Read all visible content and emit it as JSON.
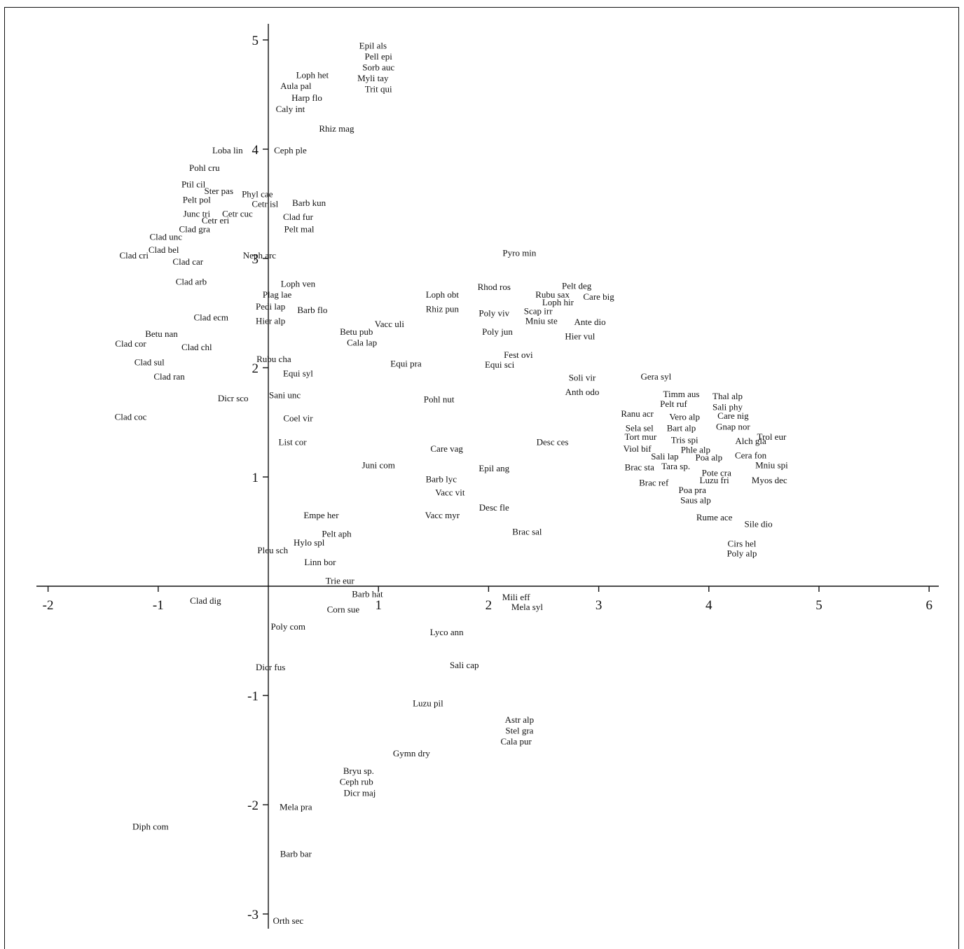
{
  "chart_data": {
    "type": "scatter",
    "title": "",
    "xlabel": "",
    "ylabel": "",
    "xlim": [
      -2.1,
      6.1
    ],
    "ylim": [
      -3.1,
      5.1
    ],
    "grid": false,
    "x_ticks": [
      "-2",
      "-1",
      "1",
      "2",
      "3",
      "4",
      "5",
      "6"
    ],
    "y_ticks": [
      "5",
      "4",
      "3",
      "2",
      "1",
      "-1",
      "-2",
      "-3"
    ],
    "points": [
      {
        "label": "Epil als",
        "x": 0.95,
        "y": 4.95
      },
      {
        "label": "Pell epi",
        "x": 1.0,
        "y": 4.85
      },
      {
        "label": "Sorb auc",
        "x": 1.0,
        "y": 4.75
      },
      {
        "label": "Myli tay",
        "x": 0.95,
        "y": 4.65
      },
      {
        "label": "Trit qui",
        "x": 1.0,
        "y": 4.55
      },
      {
        "label": "Loph het",
        "x": 0.4,
        "y": 4.68
      },
      {
        "label": "Aula pal",
        "x": 0.25,
        "y": 4.58
      },
      {
        "label": "Harp flo",
        "x": 0.35,
        "y": 4.47
      },
      {
        "label": "Caly int",
        "x": 0.2,
        "y": 4.37
      },
      {
        "label": "Rhiz mag",
        "x": 0.62,
        "y": 4.19
      },
      {
        "label": "Loba lin",
        "x": -0.37,
        "y": 3.99
      },
      {
        "label": "Ceph ple",
        "x": 0.2,
        "y": 3.99
      },
      {
        "label": "Pohl cru",
        "x": -0.58,
        "y": 3.83
      },
      {
        "label": "Ptil cil",
        "x": -0.68,
        "y": 3.68
      },
      {
        "label": "Ster pas",
        "x": -0.45,
        "y": 3.62
      },
      {
        "label": "Phyl cae",
        "x": -0.1,
        "y": 3.59
      },
      {
        "label": "Pelt pol",
        "x": -0.65,
        "y": 3.54
      },
      {
        "label": "Cetr isl",
        "x": -0.03,
        "y": 3.5
      },
      {
        "label": "Barb kun",
        "x": 0.37,
        "y": 3.51
      },
      {
        "label": "Junc tri",
        "x": -0.65,
        "y": 3.41
      },
      {
        "label": "Cetr cuc",
        "x": -0.28,
        "y": 3.41
      },
      {
        "label": "Cetr eri",
        "x": -0.48,
        "y": 3.35
      },
      {
        "label": "Clad fur",
        "x": 0.27,
        "y": 3.38
      },
      {
        "label": "Clad gra",
        "x": -0.67,
        "y": 3.27
      },
      {
        "label": "Pelt mal",
        "x": 0.28,
        "y": 3.27
      },
      {
        "label": "Clad unc",
        "x": -0.93,
        "y": 3.2
      },
      {
        "label": "Clad bel",
        "x": -0.95,
        "y": 3.08
      },
      {
        "label": "Clad cri",
        "x": -1.22,
        "y": 3.03
      },
      {
        "label": "Neph arc",
        "x": -0.08,
        "y": 3.03
      },
      {
        "label": "Clad car",
        "x": -0.73,
        "y": 2.97
      },
      {
        "label": "Pyro min",
        "x": 2.28,
        "y": 3.05
      },
      {
        "label": "Clad arb",
        "x": -0.7,
        "y": 2.79
      },
      {
        "label": "Loph ven",
        "x": 0.27,
        "y": 2.77
      },
      {
        "label": "Rhod ros",
        "x": 2.05,
        "y": 2.74
      },
      {
        "label": "Pelt deg",
        "x": 2.8,
        "y": 2.75
      },
      {
        "label": "Plag lae",
        "x": 0.08,
        "y": 2.67
      },
      {
        "label": "Loph obt",
        "x": 1.58,
        "y": 2.67
      },
      {
        "label": "Rubu sax",
        "x": 2.58,
        "y": 2.67
      },
      {
        "label": "Care big",
        "x": 3.0,
        "y": 2.65
      },
      {
        "label": "Loph hir",
        "x": 2.63,
        "y": 2.6
      },
      {
        "label": "Pedi lap",
        "x": 0.02,
        "y": 2.56
      },
      {
        "label": "Rhiz pun",
        "x": 1.58,
        "y": 2.54
      },
      {
        "label": "Barb flo",
        "x": 0.4,
        "y": 2.53
      },
      {
        "label": "Scap irr",
        "x": 2.45,
        "y": 2.52
      },
      {
        "label": "Poly viv",
        "x": 2.05,
        "y": 2.5
      },
      {
        "label": "Clad ecm",
        "x": -0.52,
        "y": 2.46
      },
      {
        "label": "Hier alp",
        "x": 0.02,
        "y": 2.43
      },
      {
        "label": "Mniu ste",
        "x": 2.48,
        "y": 2.43
      },
      {
        "label": "Ante dio",
        "x": 2.92,
        "y": 2.42
      },
      {
        "label": "Vacc uli",
        "x": 1.1,
        "y": 2.4
      },
      {
        "label": "Betu pub",
        "x": 0.8,
        "y": 2.33
      },
      {
        "label": "Poly jun",
        "x": 2.08,
        "y": 2.33
      },
      {
        "label": "Betu nan",
        "x": -0.97,
        "y": 2.31
      },
      {
        "label": "Hier vul",
        "x": 2.83,
        "y": 2.29
      },
      {
        "label": "Cala lap",
        "x": 0.85,
        "y": 2.23
      },
      {
        "label": "Clad cor",
        "x": -1.25,
        "y": 2.22
      },
      {
        "label": "Clad chl",
        "x": -0.65,
        "y": 2.19
      },
      {
        "label": "Fest ovi",
        "x": 2.27,
        "y": 2.12
      },
      {
        "label": "Rubu cha",
        "x": 0.05,
        "y": 2.08
      },
      {
        "label": "Equi pra",
        "x": 1.25,
        "y": 2.04
      },
      {
        "label": "Equi sci",
        "x": 2.1,
        "y": 2.03
      },
      {
        "label": "Clad sul",
        "x": -1.08,
        "y": 2.05
      },
      {
        "label": "Equi syl",
        "x": 0.27,
        "y": 1.95
      },
      {
        "label": "Clad ran",
        "x": -0.9,
        "y": 1.92
      },
      {
        "label": "Soli vir",
        "x": 2.85,
        "y": 1.91
      },
      {
        "label": "Gera syl",
        "x": 3.52,
        "y": 1.92
      },
      {
        "label": "Anth odo",
        "x": 2.85,
        "y": 1.78
      },
      {
        "label": "Sani unc",
        "x": 0.15,
        "y": 1.75
      },
      {
        "label": "Dicr sco",
        "x": -0.32,
        "y": 1.72
      },
      {
        "label": "Timm aus",
        "x": 3.75,
        "y": 1.76
      },
      {
        "label": "Thal alp",
        "x": 4.17,
        "y": 1.74
      },
      {
        "label": "Pohl nut",
        "x": 1.55,
        "y": 1.71
      },
      {
        "label": "Pelt ruf",
        "x": 3.68,
        "y": 1.67
      },
      {
        "label": "Sali phy",
        "x": 4.17,
        "y": 1.64
      },
      {
        "label": "Ranu acr",
        "x": 3.35,
        "y": 1.58
      },
      {
        "label": "Vero alp",
        "x": 3.78,
        "y": 1.55
      },
      {
        "label": "Care nig",
        "x": 4.22,
        "y": 1.56
      },
      {
        "label": "Clad coc",
        "x": -1.25,
        "y": 1.55
      },
      {
        "label": "Coel vir",
        "x": 0.27,
        "y": 1.54
      },
      {
        "label": "Sela sel",
        "x": 3.37,
        "y": 1.45
      },
      {
        "label": "Bart alp",
        "x": 3.75,
        "y": 1.45
      },
      {
        "label": "Gnap nor",
        "x": 4.22,
        "y": 1.46
      },
      {
        "label": "Tort mur",
        "x": 3.38,
        "y": 1.37
      },
      {
        "label": "Trol eur",
        "x": 4.57,
        "y": 1.37
      },
      {
        "label": "Tris spi",
        "x": 3.78,
        "y": 1.34
      },
      {
        "label": "Alch gla",
        "x": 4.38,
        "y": 1.33
      },
      {
        "label": "List cor",
        "x": 0.22,
        "y": 1.32
      },
      {
        "label": "Desc ces",
        "x": 2.58,
        "y": 1.32
      },
      {
        "label": "Viol bif",
        "x": 3.35,
        "y": 1.26
      },
      {
        "label": "Phle alp",
        "x": 3.88,
        "y": 1.25
      },
      {
        "label": "Care vag",
        "x": 1.62,
        "y": 1.26
      },
      {
        "label": "Sali lap",
        "x": 3.6,
        "y": 1.19
      },
      {
        "label": "Poa alp",
        "x": 4.0,
        "y": 1.18
      },
      {
        "label": "Cera fon",
        "x": 4.38,
        "y": 1.2
      },
      {
        "label": "Juni com",
        "x": 1.0,
        "y": 1.11
      },
      {
        "label": "Brac sta",
        "x": 3.37,
        "y": 1.09
      },
      {
        "label": "Tara sp.",
        "x": 3.7,
        "y": 1.1
      },
      {
        "label": "Mniu spi",
        "x": 4.57,
        "y": 1.11
      },
      {
        "label": "Epil ang",
        "x": 2.05,
        "y": 1.08
      },
      {
        "label": "Pote cra",
        "x": 4.07,
        "y": 1.04
      },
      {
        "label": "Barb lyc",
        "x": 1.57,
        "y": 0.98
      },
      {
        "label": "Luzu fri",
        "x": 4.05,
        "y": 0.97
      },
      {
        "label": "Myos dec",
        "x": 4.55,
        "y": 0.97
      },
      {
        "label": "Brac ref",
        "x": 3.5,
        "y": 0.95
      },
      {
        "label": "Vacc vit",
        "x": 1.65,
        "y": 0.86
      },
      {
        "label": "Poa pra",
        "x": 3.85,
        "y": 0.88
      },
      {
        "label": "Saus alp",
        "x": 3.88,
        "y": 0.79
      },
      {
        "label": "Desc fle",
        "x": 2.05,
        "y": 0.72
      },
      {
        "label": "Empe her",
        "x": 0.48,
        "y": 0.65
      },
      {
        "label": "Vacc myr",
        "x": 1.58,
        "y": 0.65
      },
      {
        "label": "Rume ace",
        "x": 4.05,
        "y": 0.63
      },
      {
        "label": "Sile dio",
        "x": 4.45,
        "y": 0.57
      },
      {
        "label": "Brac sal",
        "x": 2.35,
        "y": 0.5
      },
      {
        "label": "Pelt aph",
        "x": 0.62,
        "y": 0.48
      },
      {
        "label": "Hylo spl",
        "x": 0.37,
        "y": 0.4
      },
      {
        "label": "Cirs hel",
        "x": 4.3,
        "y": 0.39
      },
      {
        "label": "Pleu sch",
        "x": 0.04,
        "y": 0.33
      },
      {
        "label": "Poly alp",
        "x": 4.3,
        "y": 0.3
      },
      {
        "label": "Linn bor",
        "x": 0.47,
        "y": 0.22
      },
      {
        "label": "Trie eur",
        "x": 0.65,
        "y": 0.05
      },
      {
        "label": "Barb hat",
        "x": 0.9,
        "y": -0.07
      },
      {
        "label": "Mili eff",
        "x": 2.25,
        "y": -0.1
      },
      {
        "label": "Clad dig",
        "x": -0.57,
        "y": -0.13
      },
      {
        "label": "Mela syl",
        "x": 2.35,
        "y": -0.19
      },
      {
        "label": "Corn sue",
        "x": 0.68,
        "y": -0.21
      },
      {
        "label": "Poly com",
        "x": 0.18,
        "y": -0.37
      },
      {
        "label": "Lyco ann",
        "x": 1.62,
        "y": -0.42
      },
      {
        "label": "Sali cap",
        "x": 1.78,
        "y": -0.72
      },
      {
        "label": "Dicr fus",
        "x": 0.02,
        "y": -0.74
      },
      {
        "label": "Luzu pil",
        "x": 1.45,
        "y": -1.07
      },
      {
        "label": "Astr alp",
        "x": 2.28,
        "y": -1.22
      },
      {
        "label": "Stel gra",
        "x": 2.28,
        "y": -1.32
      },
      {
        "label": "Cala pur",
        "x": 2.25,
        "y": -1.42
      },
      {
        "label": "Gymn dry",
        "x": 1.3,
        "y": -1.53
      },
      {
        "label": "Bryu sp.",
        "x": 0.82,
        "y": -1.69
      },
      {
        "label": "Ceph rub",
        "x": 0.8,
        "y": -1.79
      },
      {
        "label": "Dicr maj",
        "x": 0.83,
        "y": -1.89
      },
      {
        "label": "Mela pra",
        "x": 0.25,
        "y": -2.02
      },
      {
        "label": "Diph com",
        "x": -1.07,
        "y": -2.2
      },
      {
        "label": "Barb bar",
        "x": 0.25,
        "y": -2.45
      },
      {
        "label": "Orth sec",
        "x": 0.18,
        "y": -3.06
      }
    ]
  }
}
